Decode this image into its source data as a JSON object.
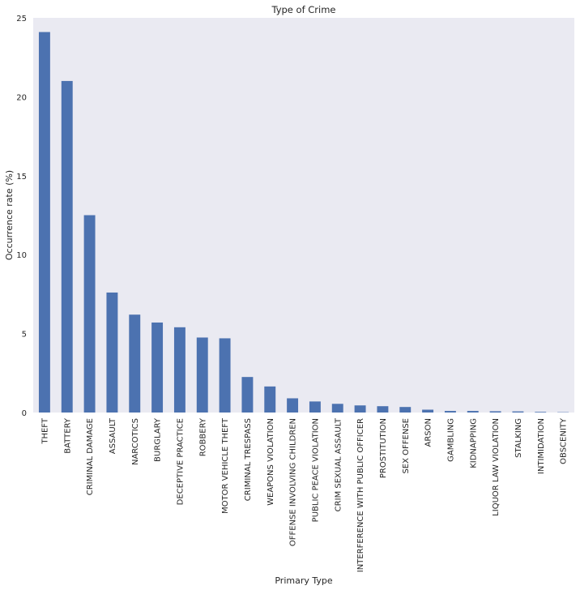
{
  "chart_data": {
    "type": "bar",
    "title": "Type of Crime",
    "xlabel": "Primary Type",
    "ylabel": "Occurrence rate (%)",
    "ylim": [
      0,
      25
    ],
    "yticks": [
      0,
      5,
      10,
      15,
      20,
      25
    ],
    "grid": false,
    "bar_color": "#4c72b0",
    "plot_background": "#eaeaf2",
    "categories": [
      "THEFT",
      "BATTERY",
      "CRIMINAL DAMAGE",
      "ASSAULT",
      "NARCOTICS",
      "BURGLARY",
      "DECEPTIVE PRACTICE",
      "ROBBERY",
      "MOTOR VEHICLE THEFT",
      "CRIMINAL TRESPASS",
      "WEAPONS VIOLATION",
      "OFFENSE INVOLVING CHILDREN",
      "PUBLIC PEACE VIOLATION",
      "CRIM SEXUAL ASSAULT",
      "INTERFERENCE WITH PUBLIC OFFICER",
      "PROSTITUTION",
      "SEX OFFENSE",
      "ARSON",
      "GAMBLING",
      "KIDNAPPING",
      "LIQUOR LAW VIOLATION",
      "STALKING",
      "INTIMIDATION",
      "OBSCENITY"
    ],
    "values": [
      24.1,
      21.0,
      12.5,
      7.6,
      6.2,
      5.7,
      5.4,
      4.75,
      4.7,
      2.25,
      1.65,
      0.9,
      0.7,
      0.55,
      0.45,
      0.4,
      0.35,
      0.18,
      0.1,
      0.1,
      0.08,
      0.07,
      0.04,
      0.02
    ]
  }
}
